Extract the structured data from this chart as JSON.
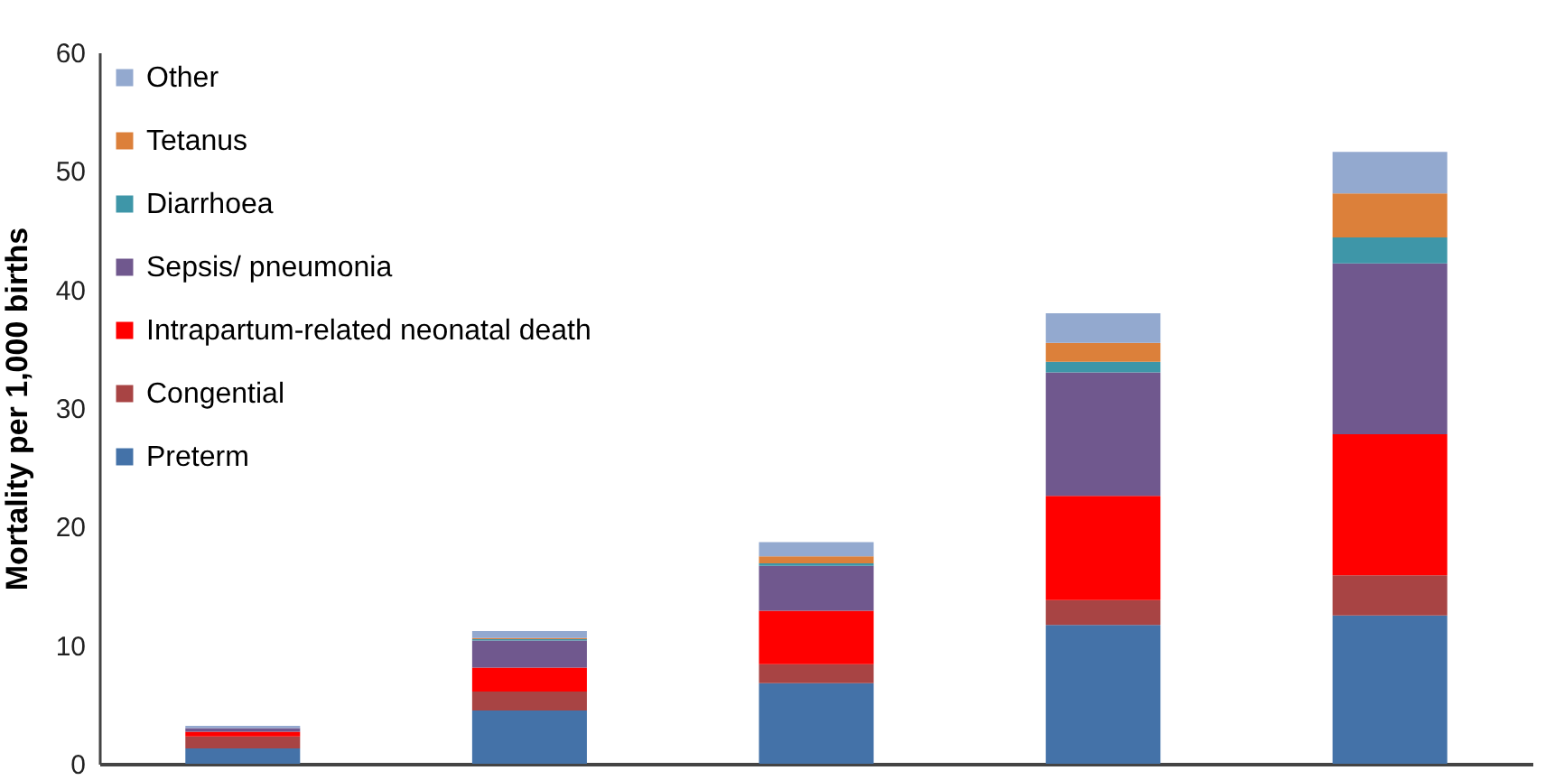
{
  "chart_data": {
    "type": "bar",
    "stacked": true,
    "ylabel": "Mortality per 1,000 births",
    "categories": [
      null,
      null,
      null,
      null,
      null
    ],
    "ylim": [
      0,
      60
    ],
    "yticks": [
      0,
      10,
      20,
      30,
      40,
      50,
      60
    ],
    "grid": false,
    "legend": "top left",
    "tick_labels": "y",
    "series": [
      {
        "name": "Preterm",
        "color": "#4472a8",
        "values": [
          1.3,
          4.5,
          6.8,
          11.7,
          12.5
        ]
      },
      {
        "name": "Congential",
        "color": "#a84444",
        "values": [
          1.0,
          1.6,
          1.6,
          2.1,
          3.4
        ]
      },
      {
        "name": "Intrapartum-related neonatal death",
        "color": "#ff0000",
        "values": [
          0.4,
          2.0,
          4.5,
          8.8,
          11.9
        ]
      },
      {
        "name": "Sepsis/ pneumonia",
        "color": "#70588e",
        "values": [
          0.3,
          2.3,
          3.8,
          10.4,
          14.4
        ]
      },
      {
        "name": "Diarrhoea",
        "color": "#3e96a8",
        "values": [
          0,
          0.1,
          0.2,
          0.9,
          2.2
        ]
      },
      {
        "name": "Tetanus",
        "color": "#dc803a",
        "values": [
          0,
          0.1,
          0.6,
          1.6,
          3.7
        ]
      },
      {
        "name": "Other",
        "color": "#93a9cf",
        "values": [
          0.2,
          0.6,
          1.2,
          2.5,
          3.5
        ]
      }
    ]
  }
}
